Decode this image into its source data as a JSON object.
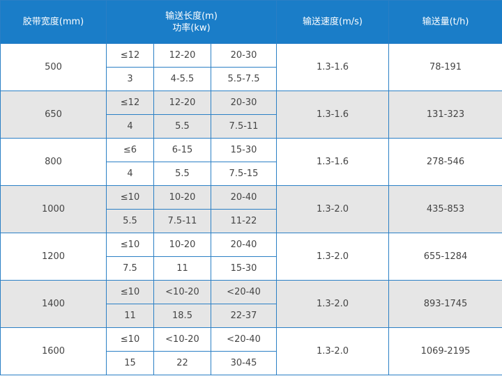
{
  "header": {
    "width": "胶带宽度(mm)",
    "length": "输送长度(m)",
    "power": "功率(kw)",
    "speed": "输送速度(m/s)",
    "capacity": "输送量(t/h)"
  },
  "rows": [
    {
      "width": "500",
      "lengths": [
        "≤12",
        "12-20",
        "20-30"
      ],
      "powers": [
        "3",
        "4-5.5",
        "5.5-7.5"
      ],
      "speed": "1.3-1.6",
      "capacity": "78-191"
    },
    {
      "width": "650",
      "lengths": [
        "≤12",
        "12-20",
        "20-30"
      ],
      "powers": [
        "4",
        "5.5",
        "7.5-11"
      ],
      "speed": "1.3-1.6",
      "capacity": "131-323"
    },
    {
      "width": "800",
      "lengths": [
        "≤6",
        "6-15",
        "15-30"
      ],
      "powers": [
        "4",
        "5.5",
        "7.5-15"
      ],
      "speed": "1.3-1.6",
      "capacity": "278-546"
    },
    {
      "width": "1000",
      "lengths": [
        "≤10",
        "10-20",
        "20-40"
      ],
      "powers": [
        "5.5",
        "7.5-11",
        "11-22"
      ],
      "speed": "1.3-2.0",
      "capacity": "435-853"
    },
    {
      "width": "1200",
      "lengths": [
        "≤10",
        "10-20",
        "20-40"
      ],
      "powers": [
        "7.5",
        "11",
        "15-30"
      ],
      "speed": "1.3-2.0",
      "capacity": "655-1284"
    },
    {
      "width": "1400",
      "lengths": [
        "≤10",
        "<10-20",
        "<20-40"
      ],
      "powers": [
        "11",
        "18.5",
        "22-37"
      ],
      "speed": "1.3-2.0",
      "capacity": "893-1745"
    },
    {
      "width": "1600",
      "lengths": [
        "≤10",
        "<10-20",
        "<20-40"
      ],
      "powers": [
        "15",
        "22",
        "30-45"
      ],
      "speed": "1.3-2.0",
      "capacity": "1069-2195"
    }
  ],
  "colors": {
    "header_bg": "#1a7dc8",
    "border": "#2a7fc5",
    "alt_row": "#e6e6e6"
  }
}
